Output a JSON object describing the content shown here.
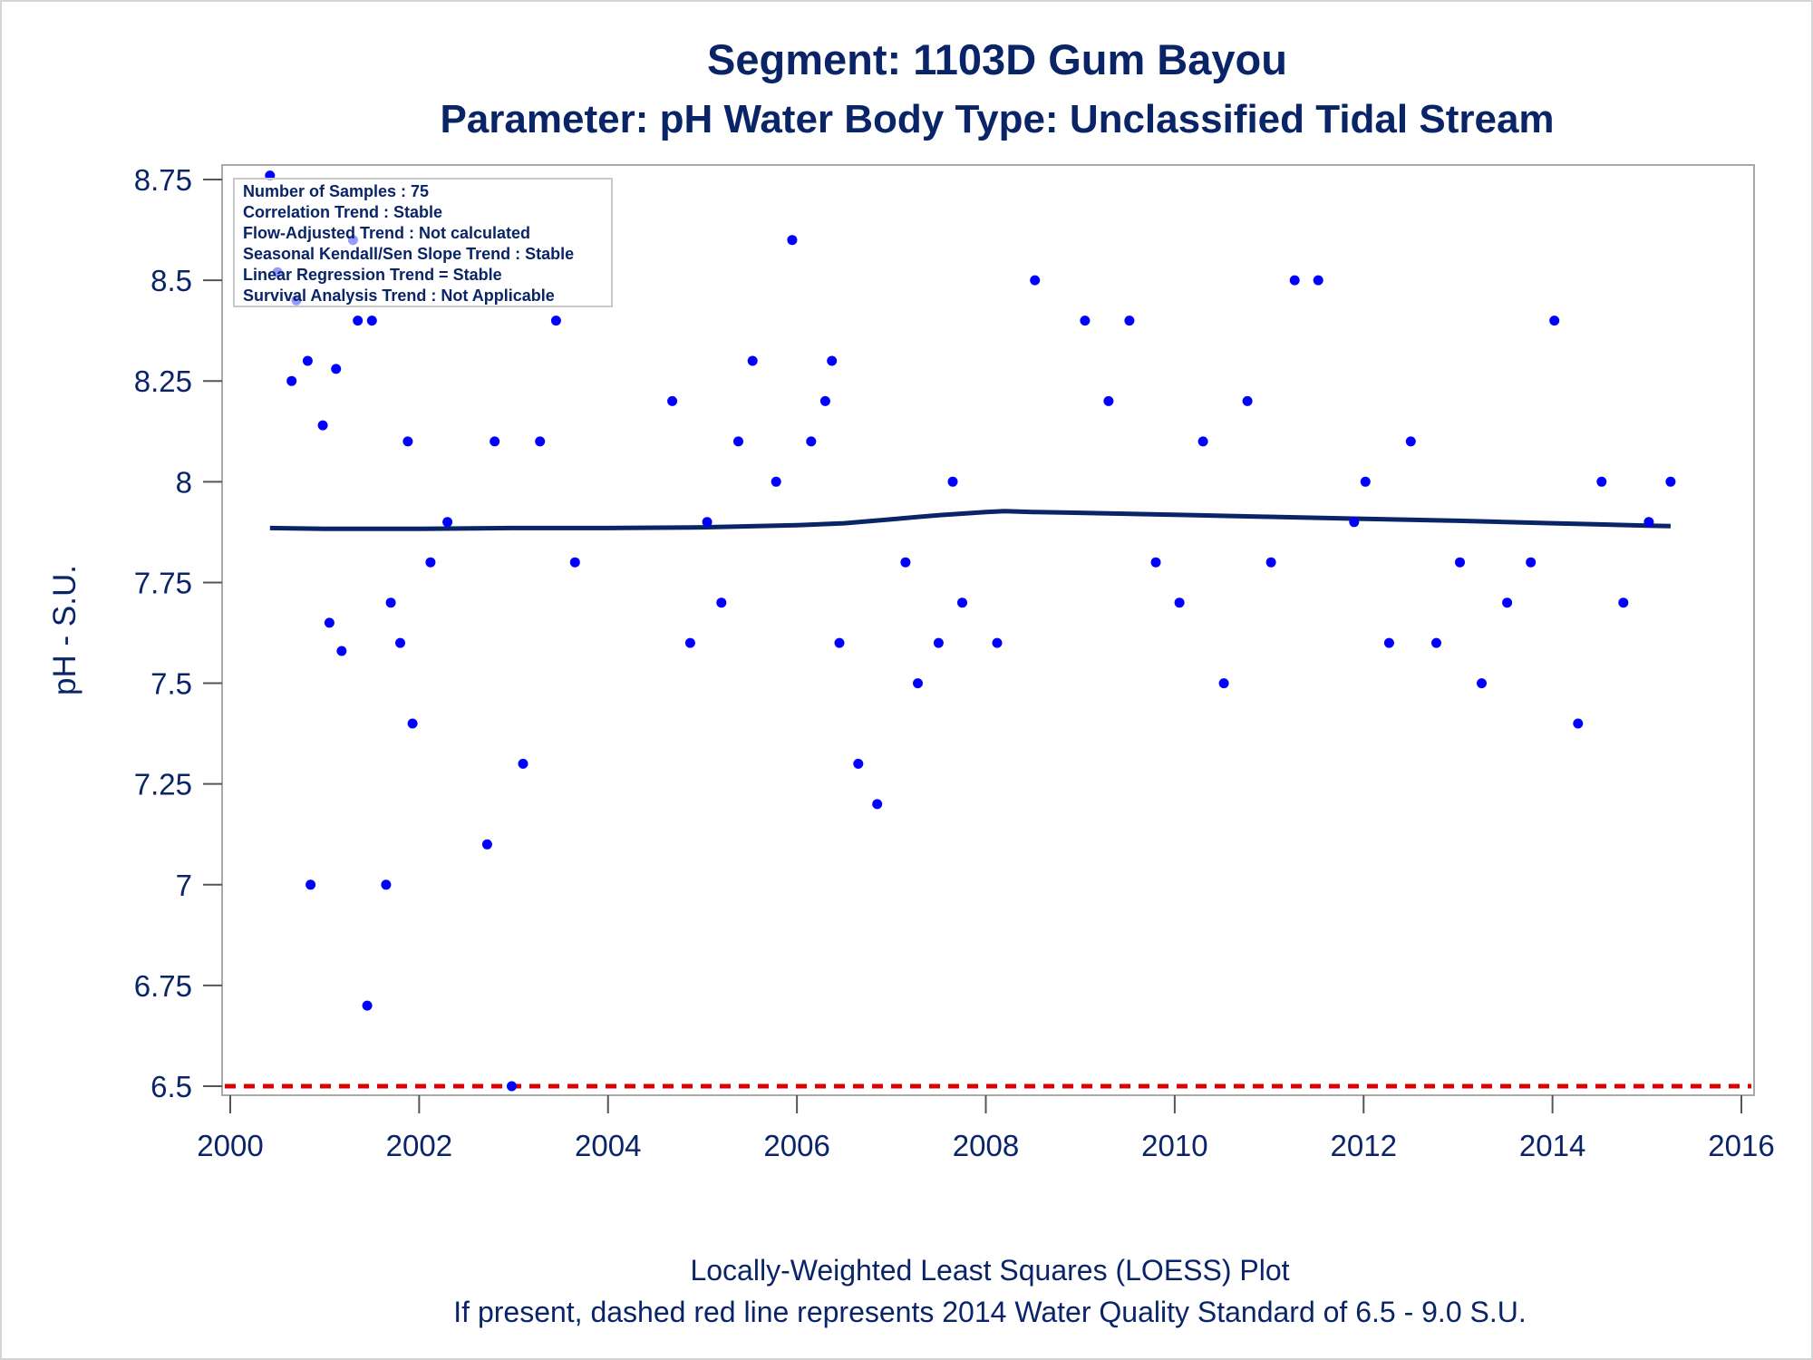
{
  "chart_data": {
    "type": "scatter",
    "title": "Segment: 1103D  Gum Bayou",
    "subtitle": "Parameter: pH   Water Body Type: Unclassified Tidal Stream",
    "xlabel": "",
    "ylabel": "pH - S.U.",
    "xlim": [
      2000,
      2016
    ],
    "ylim": [
      6.5,
      8.75
    ],
    "x_ticks": [
      2000,
      2002,
      2004,
      2006,
      2008,
      2010,
      2012,
      2014,
      2016
    ],
    "y_ticks": [
      6.5,
      6.75,
      7,
      7.25,
      7.5,
      7.75,
      8,
      8.25,
      8.5,
      8.75
    ],
    "y_tick_labels": [
      "6.5",
      "6.75",
      "7",
      "7.25",
      "7.5",
      "7.75",
      "8",
      "8.25",
      "8.5",
      "8.75"
    ],
    "grid": false,
    "series": [
      {
        "type": "scatter",
        "color": "#0000ff",
        "points": [
          [
            2000.42,
            8.76
          ],
          [
            2000.5,
            8.52
          ],
          [
            2000.65,
            8.25
          ],
          [
            2000.7,
            8.45
          ],
          [
            2000.82,
            8.3
          ],
          [
            2000.85,
            7.0
          ],
          [
            2000.98,
            8.14
          ],
          [
            2001.05,
            7.65
          ],
          [
            2001.12,
            8.28
          ],
          [
            2001.18,
            7.58
          ],
          [
            2001.3,
            8.6
          ],
          [
            2001.35,
            8.4
          ],
          [
            2001.45,
            6.7
          ],
          [
            2001.5,
            8.4
          ],
          [
            2001.65,
            7.0
          ],
          [
            2001.7,
            7.7
          ],
          [
            2001.8,
            7.6
          ],
          [
            2001.88,
            8.1
          ],
          [
            2001.93,
            7.4
          ],
          [
            2002.12,
            7.8
          ],
          [
            2002.3,
            7.9
          ],
          [
            2002.72,
            7.1
          ],
          [
            2002.8,
            8.1
          ],
          [
            2002.98,
            6.5
          ],
          [
            2003.1,
            7.3
          ],
          [
            2003.28,
            8.1
          ],
          [
            2003.45,
            8.4
          ],
          [
            2003.65,
            7.8
          ],
          [
            2004.68,
            8.2
          ],
          [
            2004.87,
            7.6
          ],
          [
            2005.05,
            7.9
          ],
          [
            2005.2,
            7.7
          ],
          [
            2005.38,
            8.1
          ],
          [
            2005.53,
            8.3
          ],
          [
            2005.78,
            8.0
          ],
          [
            2005.95,
            8.6
          ],
          [
            2006.15,
            8.1
          ],
          [
            2006.3,
            8.2
          ],
          [
            2006.37,
            8.3
          ],
          [
            2006.45,
            7.6
          ],
          [
            2006.65,
            7.3
          ],
          [
            2006.85,
            7.2
          ],
          [
            2007.15,
            7.8
          ],
          [
            2007.28,
            7.5
          ],
          [
            2007.5,
            7.6
          ],
          [
            2007.65,
            8.0
          ],
          [
            2007.75,
            7.7
          ],
          [
            2008.12,
            7.6
          ],
          [
            2008.52,
            8.5
          ],
          [
            2009.05,
            8.4
          ],
          [
            2009.3,
            8.2
          ],
          [
            2009.52,
            8.4
          ],
          [
            2009.8,
            7.8
          ],
          [
            2010.05,
            7.7
          ],
          [
            2010.3,
            8.1
          ],
          [
            2010.52,
            7.5
          ],
          [
            2010.77,
            8.2
          ],
          [
            2011.02,
            7.8
          ],
          [
            2011.27,
            8.5
          ],
          [
            2011.52,
            8.5
          ],
          [
            2011.9,
            7.9
          ],
          [
            2012.02,
            8.0
          ],
          [
            2012.27,
            7.6
          ],
          [
            2012.5,
            8.1
          ],
          [
            2012.77,
            7.6
          ],
          [
            2013.02,
            7.8
          ],
          [
            2013.25,
            7.5
          ],
          [
            2013.52,
            7.7
          ],
          [
            2013.77,
            7.8
          ],
          [
            2014.02,
            8.4
          ],
          [
            2014.27,
            7.4
          ],
          [
            2014.52,
            8.0
          ],
          [
            2014.75,
            7.7
          ],
          [
            2015.02,
            7.9
          ],
          [
            2015.25,
            8.0
          ]
        ]
      },
      {
        "type": "line",
        "color": "#0a2468",
        "x": [
          2000.42,
          2001.0,
          2002.0,
          2003.0,
          2004.0,
          2005.0,
          2006.0,
          2006.5,
          2007.0,
          2007.5,
          2008.0,
          2008.2,
          2008.5,
          2009.0,
          2010.0,
          2011.0,
          2012.0,
          2013.0,
          2014.0,
          2014.5,
          2015.0,
          2015.25
        ],
        "y": [
          7.885,
          7.883,
          7.883,
          7.885,
          7.885,
          7.887,
          7.892,
          7.897,
          7.907,
          7.917,
          7.925,
          7.927,
          7.925,
          7.923,
          7.918,
          7.913,
          7.908,
          7.903,
          7.897,
          7.894,
          7.891,
          7.89
        ]
      },
      {
        "type": "hline",
        "color": "#dd0000",
        "y": 6.5,
        "dashed": true
      }
    ],
    "annotations": [
      "Number of Samples : 75",
      "Correlation Trend : Stable",
      "Flow-Adjusted Trend : Not calculated",
      "Seasonal Kendall/Sen Slope Trend : Stable",
      "Linear Regression Trend = Stable",
      "Survival Analysis Trend : Not Applicable"
    ],
    "footnotes": [
      "Locally-Weighted Least Squares (LOESS) Plot",
      "If present, dashed red line represents 2014 Water Quality Standard of 6.5 - 9.0 S.U."
    ]
  }
}
